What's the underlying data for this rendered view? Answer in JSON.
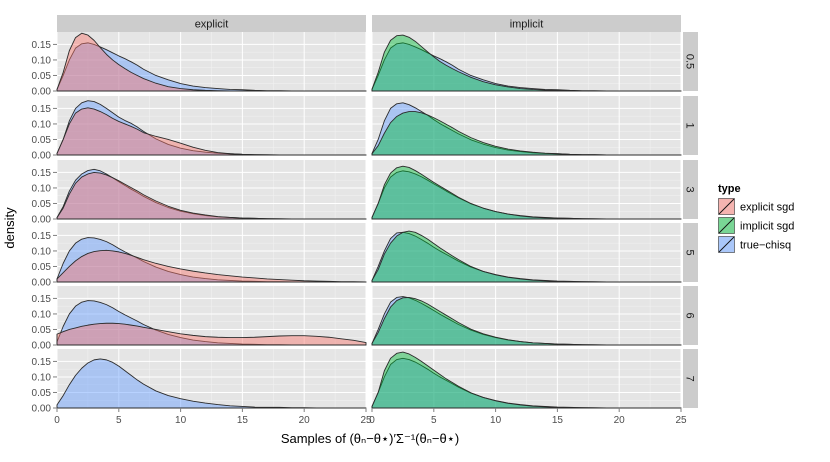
{
  "chart_data": {
    "type": "area",
    "title": "",
    "xlabel": "Samples of (θₙ−θ⋆)′Σ⁻¹(θₙ−θ⋆)",
    "ylabel": "density",
    "xlim": [
      0,
      25
    ],
    "ylim": [
      0,
      0.19
    ],
    "x_ticks": [
      0,
      5,
      10,
      15,
      20,
      25
    ],
    "y_ticks": [
      0,
      0.05,
      0.1,
      0.15
    ],
    "y_tick_labels": [
      "0.00",
      "0.05",
      "0.10",
      "0.15"
    ],
    "col_facets": [
      "explicit",
      "implicit"
    ],
    "row_facets": [
      "0.5",
      "1",
      "3",
      "5",
      "6",
      "7"
    ],
    "legend": {
      "title": "type",
      "position": "right",
      "entries": [
        {
          "label": "explicit sgd",
          "color": "#F8766D"
        },
        {
          "label": "implicit sgd",
          "color": "#00BA38"
        },
        {
          "label": "true−chisq",
          "color": "#619CFF"
        }
      ]
    },
    "x": [
      0,
      0.5,
      1,
      1.5,
      2,
      2.5,
      3,
      3.5,
      4,
      4.5,
      5,
      5.5,
      6,
      6.5,
      7,
      8,
      9,
      10,
      11,
      12,
      13,
      14,
      15,
      16,
      17,
      18,
      19,
      20,
      21,
      22,
      23,
      24,
      25
    ],
    "panels": [
      {
        "col": "explicit",
        "row": "0.5",
        "series": [
          {
            "name": "true−chisq",
            "values": [
              0.005,
              0.05,
              0.1,
              0.138,
              0.152,
              0.155,
              0.15,
              0.142,
              0.133,
              0.123,
              0.113,
              0.104,
              0.094,
              0.083,
              0.07,
              0.05,
              0.036,
              0.024,
              0.016,
              0.011,
              0.008,
              0.005,
              0.004,
              0.002,
              0.001,
              0.001,
              0,
              0,
              0,
              0,
              0,
              0,
              0
            ]
          },
          {
            "name": "explicit sgd",
            "values": [
              0.005,
              0.06,
              0.13,
              0.172,
              0.186,
              0.18,
              0.163,
              0.14,
              0.118,
              0.1,
              0.085,
              0.072,
              0.06,
              0.05,
              0.04,
              0.025,
              0.014,
              0.008,
              0.004,
              0.002,
              0.001,
              0,
              0,
              0,
              0,
              0,
              0,
              0,
              0,
              0,
              0,
              0,
              0
            ]
          }
        ]
      },
      {
        "col": "implicit",
        "row": "0.5",
        "series": [
          {
            "name": "true−chisq",
            "values": [
              0.005,
              0.05,
              0.1,
              0.138,
              0.152,
              0.155,
              0.15,
              0.142,
              0.133,
              0.123,
              0.113,
              0.104,
              0.094,
              0.083,
              0.07,
              0.05,
              0.036,
              0.024,
              0.016,
              0.011,
              0.008,
              0.005,
              0.004,
              0.002,
              0.001,
              0.001,
              0,
              0,
              0,
              0,
              0,
              0,
              0
            ]
          },
          {
            "name": "implicit sgd",
            "values": [
              0.006,
              0.06,
              0.125,
              0.163,
              0.178,
              0.18,
              0.173,
              0.16,
              0.143,
              0.126,
              0.11,
              0.095,
              0.083,
              0.072,
              0.062,
              0.044,
              0.03,
              0.02,
              0.013,
              0.008,
              0.005,
              0.003,
              0.002,
              0.001,
              0,
              0,
              0,
              0,
              0,
              0,
              0,
              0,
              0
            ]
          }
        ]
      },
      {
        "col": "explicit",
        "row": "1",
        "series": [
          {
            "name": "true−chisq",
            "values": [
              0.005,
              0.05,
              0.11,
              0.15,
              0.168,
              0.175,
              0.172,
              0.163,
              0.15,
              0.136,
              0.122,
              0.111,
              0.102,
              0.09,
              0.076,
              0.052,
              0.034,
              0.022,
              0.014,
              0.009,
              0.006,
              0.004,
              0.002,
              0.001,
              0.001,
              0,
              0,
              0,
              0,
              0,
              0,
              0,
              0
            ]
          },
          {
            "name": "explicit sgd",
            "values": [
              0.005,
              0.05,
              0.1,
              0.135,
              0.148,
              0.152,
              0.148,
              0.14,
              0.13,
              0.118,
              0.108,
              0.1,
              0.092,
              0.083,
              0.072,
              0.06,
              0.05,
              0.038,
              0.025,
              0.015,
              0.008,
              0.004,
              0.002,
              0.001,
              0,
              0,
              0,
              0,
              0,
              0,
              0,
              0,
              0
            ]
          }
        ]
      },
      {
        "col": "implicit",
        "row": "1",
        "series": [
          {
            "name": "true−chisq",
            "values": [
              0.005,
              0.05,
              0.11,
              0.15,
              0.165,
              0.168,
              0.162,
              0.152,
              0.14,
              0.128,
              0.114,
              0.101,
              0.09,
              0.079,
              0.068,
              0.049,
              0.035,
              0.024,
              0.016,
              0.011,
              0.007,
              0.005,
              0.004,
              0.002,
              0.001,
              0.001,
              0,
              0,
              0,
              0,
              0,
              0,
              0
            ]
          },
          {
            "name": "implicit sgd",
            "values": [
              0.004,
              0.03,
              0.07,
              0.104,
              0.124,
              0.135,
              0.14,
              0.14,
              0.136,
              0.129,
              0.12,
              0.11,
              0.099,
              0.088,
              0.076,
              0.056,
              0.04,
              0.028,
              0.019,
              0.013,
              0.009,
              0.006,
              0.004,
              0.002,
              0.001,
              0.001,
              0,
              0,
              0,
              0,
              0,
              0,
              0
            ]
          }
        ]
      },
      {
        "col": "explicit",
        "row": "3",
        "series": [
          {
            "name": "true−chisq",
            "values": [
              0.005,
              0.04,
              0.09,
              0.125,
              0.145,
              0.156,
              0.16,
              0.155,
              0.145,
              0.133,
              0.12,
              0.108,
              0.096,
              0.085,
              0.073,
              0.053,
              0.037,
              0.025,
              0.017,
              0.011,
              0.007,
              0.005,
              0.003,
              0.002,
              0.001,
              0.001,
              0,
              0,
              0,
              0,
              0,
              0,
              0
            ]
          },
          {
            "name": "explicit sgd",
            "values": [
              0.004,
              0.035,
              0.08,
              0.115,
              0.135,
              0.145,
              0.15,
              0.148,
              0.142,
              0.133,
              0.123,
              0.112,
              0.101,
              0.09,
              0.078,
              0.058,
              0.041,
              0.028,
              0.019,
              0.013,
              0.008,
              0.005,
              0.003,
              0.002,
              0.001,
              0,
              0,
              0,
              0,
              0,
              0,
              0,
              0
            ]
          }
        ]
      },
      {
        "col": "implicit",
        "row": "3",
        "series": [
          {
            "name": "true−chisq",
            "values": [
              0.005,
              0.05,
              0.1,
              0.135,
              0.15,
              0.155,
              0.152,
              0.145,
              0.136,
              0.125,
              0.113,
              0.102,
              0.09,
              0.079,
              0.068,
              0.049,
              0.035,
              0.024,
              0.016,
              0.011,
              0.007,
              0.005,
              0.003,
              0.002,
              0.001,
              0.001,
              0,
              0,
              0,
              0,
              0,
              0,
              0
            ]
          },
          {
            "name": "implicit sgd",
            "values": [
              0.005,
              0.05,
              0.11,
              0.148,
              0.165,
              0.17,
              0.166,
              0.156,
              0.144,
              0.131,
              0.118,
              0.106,
              0.094,
              0.082,
              0.07,
              0.05,
              0.035,
              0.024,
              0.016,
              0.01,
              0.006,
              0.004,
              0.003,
              0.002,
              0.001,
              0,
              0,
              0,
              0,
              0,
              0,
              0,
              0
            ]
          }
        ]
      },
      {
        "col": "explicit",
        "row": "5",
        "series": [
          {
            "name": "true−chisq",
            "values": [
              0.01,
              0.06,
              0.1,
              0.125,
              0.138,
              0.143,
              0.142,
              0.137,
              0.13,
              0.12,
              0.108,
              0.097,
              0.087,
              0.077,
              0.066,
              0.048,
              0.034,
              0.024,
              0.016,
              0.011,
              0.007,
              0.005,
              0.003,
              0.002,
              0.001,
              0.001,
              0,
              0,
              0,
              0,
              0,
              0,
              0
            ]
          },
          {
            "name": "explicit sgd",
            "values": [
              0.01,
              0.03,
              0.05,
              0.068,
              0.082,
              0.092,
              0.098,
              0.101,
              0.102,
              0.1,
              0.097,
              0.092,
              0.086,
              0.079,
              0.072,
              0.06,
              0.05,
              0.042,
              0.035,
              0.029,
              0.024,
              0.02,
              0.016,
              0.013,
              0.01,
              0.008,
              0.006,
              0.004,
              0.003,
              0.002,
              0.001,
              0.001,
              0
            ]
          }
        ]
      },
      {
        "col": "implicit",
        "row": "5",
        "series": [
          {
            "name": "true−chisq",
            "values": [
              0.005,
              0.05,
              0.1,
              0.14,
              0.158,
              0.16,
              0.156,
              0.148,
              0.137,
              0.125,
              0.112,
              0.1,
              0.089,
              0.078,
              0.067,
              0.048,
              0.034,
              0.024,
              0.016,
              0.011,
              0.007,
              0.005,
              0.003,
              0.002,
              0.001,
              0.001,
              0,
              0,
              0,
              0,
              0,
              0,
              0
            ]
          },
          {
            "name": "implicit sgd",
            "values": [
              0.005,
              0.04,
              0.09,
              0.125,
              0.148,
              0.16,
              0.164,
              0.16,
              0.15,
              0.138,
              0.124,
              0.11,
              0.097,
              0.084,
              0.072,
              0.05,
              0.034,
              0.023,
              0.015,
              0.01,
              0.006,
              0.004,
              0.002,
              0.001,
              0.001,
              0,
              0,
              0,
              0,
              0,
              0,
              0,
              0
            ]
          }
        ]
      },
      {
        "col": "explicit",
        "row": "6",
        "series": [
          {
            "name": "true−chisq",
            "values": [
              0.01,
              0.06,
              0.1,
              0.125,
              0.138,
              0.143,
              0.142,
              0.137,
              0.13,
              0.12,
              0.108,
              0.097,
              0.087,
              0.077,
              0.066,
              0.048,
              0.034,
              0.024,
              0.016,
              0.011,
              0.007,
              0.005,
              0.003,
              0.002,
              0.001,
              0.001,
              0,
              0,
              0,
              0,
              0,
              0,
              0
            ]
          },
          {
            "name": "explicit sgd",
            "values": [
              0.035,
              0.043,
              0.05,
              0.055,
              0.06,
              0.064,
              0.067,
              0.069,
              0.07,
              0.07,
              0.069,
              0.067,
              0.064,
              0.061,
              0.057,
              0.05,
              0.043,
              0.036,
              0.031,
              0.027,
              0.025,
              0.024,
              0.024,
              0.025,
              0.027,
              0.029,
              0.03,
              0.03,
              0.028,
              0.025,
              0.02,
              0.015,
              0.008
            ]
          }
        ]
      },
      {
        "col": "implicit",
        "row": "6",
        "series": [
          {
            "name": "true−chisq",
            "values": [
              0.005,
              0.05,
              0.1,
              0.138,
              0.153,
              0.156,
              0.152,
              0.144,
              0.134,
              0.123,
              0.111,
              0.099,
              0.088,
              0.077,
              0.066,
              0.048,
              0.034,
              0.024,
              0.016,
              0.011,
              0.007,
              0.005,
              0.003,
              0.002,
              0.001,
              0.001,
              0,
              0,
              0,
              0,
              0,
              0,
              0
            ]
          },
          {
            "name": "implicit sgd",
            "values": [
              0.005,
              0.04,
              0.085,
              0.122,
              0.143,
              0.152,
              0.153,
              0.149,
              0.142,
              0.132,
              0.12,
              0.108,
              0.096,
              0.084,
              0.072,
              0.051,
              0.036,
              0.025,
              0.017,
              0.011,
              0.007,
              0.005,
              0.003,
              0.002,
              0.001,
              0,
              0,
              0,
              0,
              0,
              0,
              0,
              0
            ]
          }
        ]
      },
      {
        "col": "explicit",
        "row": "7",
        "series": [
          {
            "name": "true−chisq",
            "values": [
              0.01,
              0.04,
              0.075,
              0.105,
              0.128,
              0.145,
              0.155,
              0.158,
              0.155,
              0.147,
              0.135,
              0.12,
              0.105,
              0.09,
              0.077,
              0.055,
              0.04,
              0.03,
              0.022,
              0.016,
              0.011,
              0.007,
              0.005,
              0.003,
              0.002,
              0.002,
              0.001,
              0.001,
              0,
              0,
              0,
              0,
              0
            ]
          }
        ]
      },
      {
        "col": "implicit",
        "row": "7",
        "series": [
          {
            "name": "true−chisq",
            "values": [
              0.005,
              0.05,
              0.1,
              0.14,
              0.156,
              0.16,
              0.156,
              0.148,
              0.137,
              0.125,
              0.112,
              0.1,
              0.089,
              0.078,
              0.067,
              0.048,
              0.034,
              0.024,
              0.016,
              0.011,
              0.007,
              0.005,
              0.003,
              0.002,
              0.001,
              0.001,
              0,
              0,
              0,
              0,
              0,
              0,
              0
            ]
          },
          {
            "name": "implicit sgd",
            "values": [
              0.005,
              0.05,
              0.12,
              0.16,
              0.176,
              0.18,
              0.174,
              0.163,
              0.15,
              0.136,
              0.122,
              0.108,
              0.094,
              0.082,
              0.07,
              0.049,
              0.034,
              0.023,
              0.015,
              0.01,
              0.006,
              0.004,
              0.002,
              0.001,
              0.001,
              0,
              0,
              0,
              0,
              0,
              0,
              0,
              0
            ]
          }
        ]
      }
    ]
  }
}
